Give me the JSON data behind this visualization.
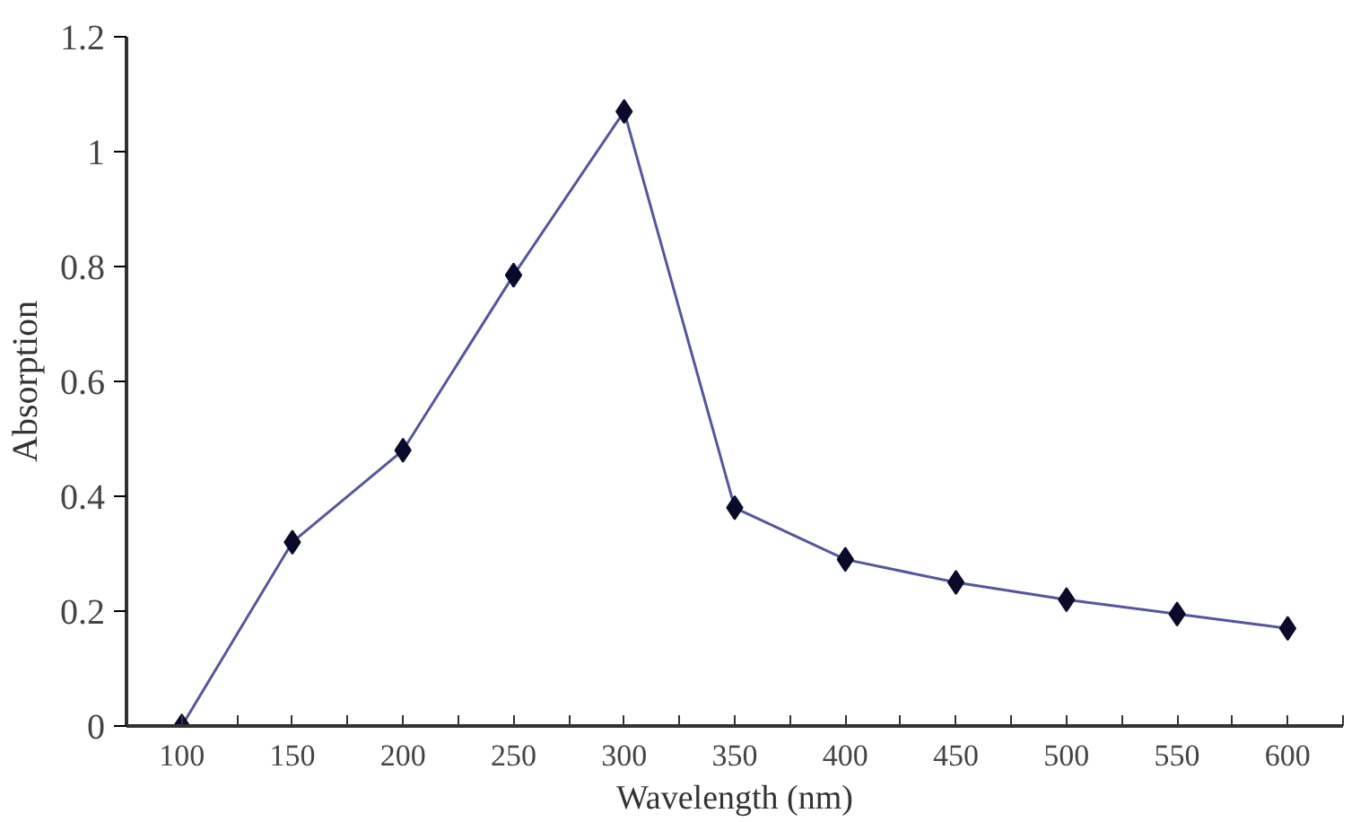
{
  "chart_data": {
    "type": "line",
    "xlabel": "Wavelength (nm)",
    "ylabel": "Absorption",
    "categories": [
      "100",
      "150",
      "200",
      "250",
      "300",
      "350",
      "400",
      "450",
      "500",
      "550",
      "600"
    ],
    "series": [
      {
        "color": "#5555a0",
        "values": [
          0,
          0.32,
          0.48,
          0.785,
          1.07,
          0.38,
          0.29,
          0.25,
          0.22,
          0.195,
          0.17
        ]
      }
    ],
    "ylim": [
      0,
      1.2
    ],
    "yticks": [
      0,
      0.2,
      0.4,
      0.6,
      0.8,
      1,
      1.2
    ],
    "grid": false,
    "marker": "diamond",
    "line_style": "solid"
  }
}
